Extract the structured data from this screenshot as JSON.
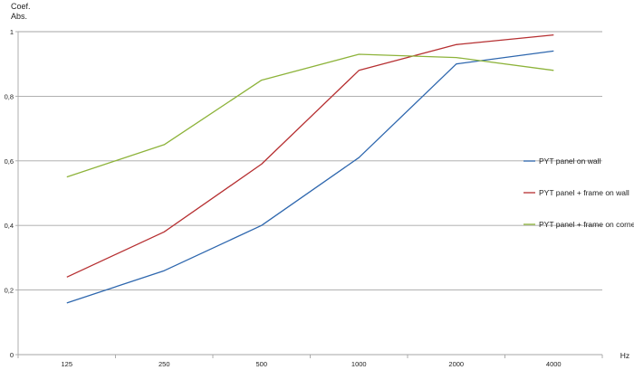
{
  "chart_data": {
    "type": "line",
    "ylabel_line1": "Coef.",
    "ylabel_line2": "Abs.",
    "xlabel": "Hz",
    "categories": [
      "125",
      "250",
      "500",
      "1000",
      "2000",
      "4000"
    ],
    "ylim": [
      0,
      1
    ],
    "yticks": [
      0,
      0.2,
      0.4,
      0.6,
      0.8,
      1
    ],
    "ytick_labels": [
      "0",
      "0,2",
      "0,4",
      "0,6",
      "0,8",
      "1"
    ],
    "grid": true,
    "legend_position": "right",
    "series": [
      {
        "name": "PYT panel on wall",
        "color": "#2e67ae",
        "values": [
          0.16,
          0.26,
          0.4,
          0.61,
          0.9,
          0.94
        ]
      },
      {
        "name": "PYT panel + frame  on wall",
        "color": "#b62f31",
        "values": [
          0.24,
          0.38,
          0.59,
          0.88,
          0.96,
          0.99
        ]
      },
      {
        "name": "PYT panel + frame on corner",
        "color": "#8db33a",
        "values": [
          0.55,
          0.65,
          0.85,
          0.93,
          0.92,
          0.88
        ]
      }
    ]
  }
}
